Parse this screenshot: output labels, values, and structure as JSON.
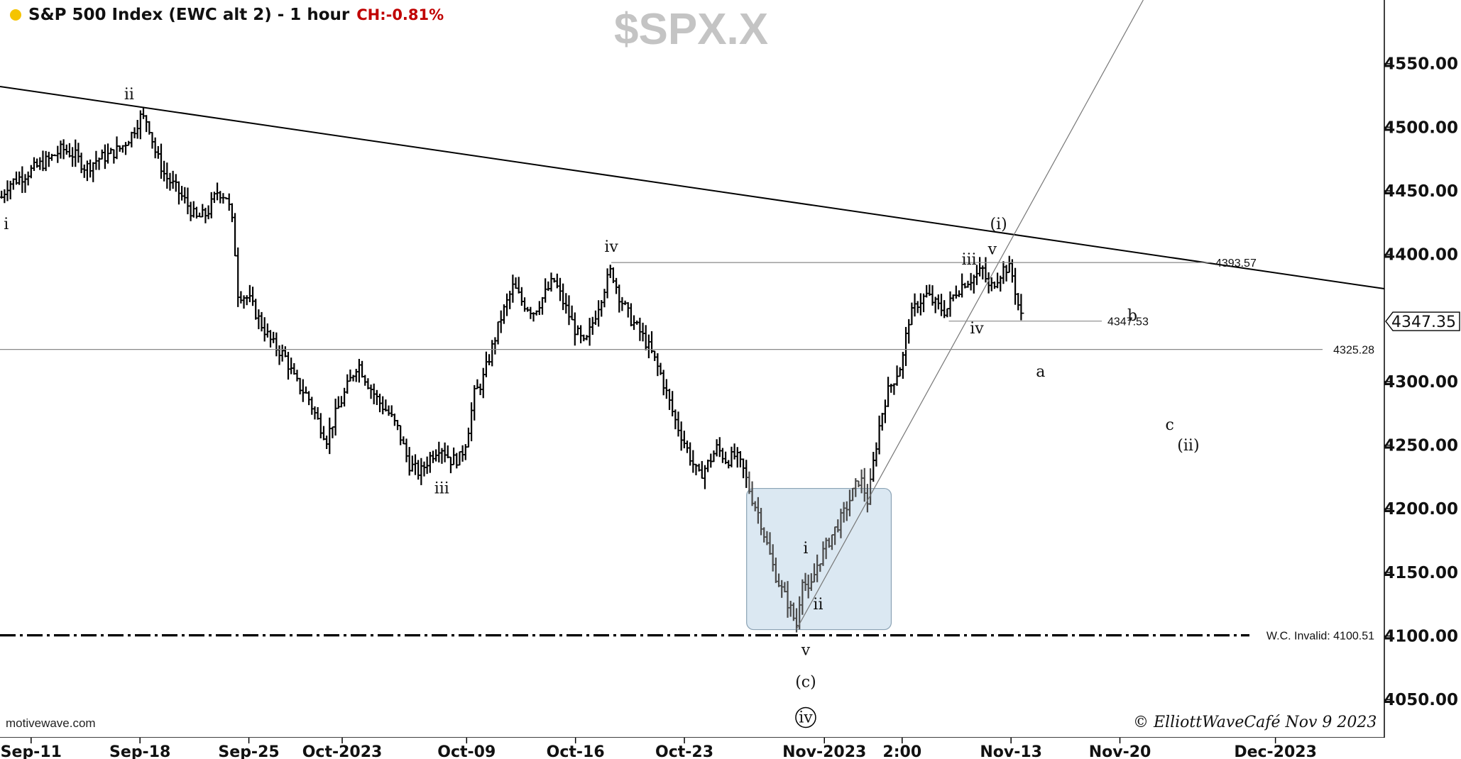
{
  "header": {
    "title": "S&P 500 Index (EWC alt 2) - 1 hour",
    "change": "CH:-0.81%",
    "watermark": "$SPX.X"
  },
  "footer": {
    "brand": "motivewave.com",
    "copyright": "© ElliottWaveCafé Nov 9 2023"
  },
  "colors": {
    "background": "#ffffff",
    "bars": "#000000",
    "highlight_box": "#dbe8f2",
    "change": "#c00000",
    "watermark": "#c4c4c4",
    "status_dot": "#f5c400"
  },
  "chart_data": {
    "type": "ohlc",
    "title": "S&P 500 Index (EWC alt 2) - 1 hour",
    "ylim": [
      4020,
      4600
    ],
    "y_ticks": [
      "4550.00",
      "4500.00",
      "4450.00",
      "4400.00",
      "4300.00",
      "4250.00",
      "4200.00",
      "4150.00",
      "4100.00",
      "4050.00"
    ],
    "x_ticks": [
      "Sep-11",
      "Sep-18",
      "Sep-25",
      "Oct-2023",
      "Oct-09",
      "Oct-16",
      "Oct-23",
      "Nov-2023",
      "2:00",
      "Nov-13",
      "Nov-20",
      "Dec-2023"
    ],
    "x_tick_days": [
      0,
      7,
      14,
      20,
      28,
      35,
      42,
      51,
      56,
      63,
      70,
      80
    ],
    "x_range_days": [
      -2,
      87
    ],
    "last_price": "4347.35",
    "levels": [
      {
        "value": 4393.57,
        "label": "4393.57"
      },
      {
        "value": 4347.53,
        "label": "4347.53"
      },
      {
        "value": 4325.28,
        "label": "4325.28"
      },
      {
        "value": 4100.51,
        "label": "W.C. Invalid: 4100.51"
      }
    ],
    "path_points": [
      [
        -1.9,
        4445
      ],
      [
        -1.5,
        4455
      ],
      [
        -0.5,
        4462
      ],
      [
        0.5,
        4470
      ],
      [
        1.2,
        4475
      ],
      [
        2.0,
        4483
      ],
      [
        2.8,
        4478
      ],
      [
        3.5,
        4468
      ],
      [
        4.3,
        4475
      ],
      [
        5.0,
        4478
      ],
      [
        5.8,
        4484
      ],
      [
        6.5,
        4495
      ],
      [
        7.0,
        4508
      ],
      [
        7.5,
        4505
      ],
      [
        8.0,
        4480
      ],
      [
        8.6,
        4462
      ],
      [
        9.3,
        4452
      ],
      [
        10.0,
        4440
      ],
      [
        10.6,
        4428
      ],
      [
        11.3,
        4432
      ],
      [
        12.0,
        4450
      ],
      [
        12.6,
        4445
      ],
      [
        13.0,
        4420
      ],
      [
        13.3,
        4370
      ],
      [
        14.0,
        4365
      ],
      [
        14.8,
        4345
      ],
      [
        15.5,
        4330
      ],
      [
        16.3,
        4320
      ],
      [
        17.0,
        4300
      ],
      [
        17.8,
        4288
      ],
      [
        18.4,
        4270
      ],
      [
        19.0,
        4255
      ],
      [
        19.6,
        4275
      ],
      [
        20.3,
        4295
      ],
      [
        21.0,
        4315
      ],
      [
        21.6,
        4300
      ],
      [
        22.3,
        4285
      ],
      [
        23.0,
        4275
      ],
      [
        23.6,
        4262
      ],
      [
        24.3,
        4235
      ],
      [
        25.0,
        4228
      ],
      [
        25.6,
        4240
      ],
      [
        26.3,
        4250
      ],
      [
        27.0,
        4238
      ],
      [
        27.6,
        4240
      ],
      [
        28.0,
        4255
      ],
      [
        28.5,
        4290
      ],
      [
        29.0,
        4300
      ],
      [
        29.6,
        4325
      ],
      [
        30.2,
        4350
      ],
      [
        31.0,
        4375
      ],
      [
        31.6,
        4362
      ],
      [
        32.3,
        4355
      ],
      [
        33.0,
        4368
      ],
      [
        33.6,
        4380
      ],
      [
        34.3,
        4360
      ],
      [
        35.0,
        4340
      ],
      [
        35.6,
        4328
      ],
      [
        36.2,
        4350
      ],
      [
        36.8,
        4372
      ],
      [
        37.3,
        4388
      ],
      [
        37.8,
        4368
      ],
      [
        38.5,
        4350
      ],
      [
        39.2,
        4338
      ],
      [
        39.8,
        4325
      ],
      [
        40.5,
        4305
      ],
      [
        41.0,
        4285
      ],
      [
        41.4,
        4270
      ],
      [
        41.9,
        4255
      ],
      [
        42.4,
        4240
      ],
      [
        42.9,
        4225
      ],
      [
        43.5,
        4235
      ],
      [
        44.1,
        4248
      ],
      [
        44.7,
        4238
      ],
      [
        45.3,
        4242
      ],
      [
        45.8,
        4230
      ],
      [
        46.3,
        4210
      ],
      [
        46.8,
        4195
      ],
      [
        47.3,
        4172
      ],
      [
        47.8,
        4150
      ],
      [
        48.3,
        4135
      ],
      [
        48.8,
        4122
      ],
      [
        49.2,
        4108
      ],
      [
        49.6,
        4148
      ],
      [
        50.0,
        4132
      ],
      [
        50.5,
        4155
      ],
      [
        51.0,
        4168
      ],
      [
        51.6,
        4182
      ],
      [
        52.2,
        4195
      ],
      [
        52.8,
        4212
      ],
      [
        53.3,
        4225
      ],
      [
        53.8,
        4205
      ],
      [
        54.2,
        4240
      ],
      [
        54.6,
        4270
      ],
      [
        55.0,
        4290
      ],
      [
        55.6,
        4305
      ],
      [
        56.0,
        4315
      ],
      [
        56.4,
        4348
      ],
      [
        57.0,
        4362
      ],
      [
        57.6,
        4368
      ],
      [
        58.2,
        4360
      ],
      [
        58.8,
        4355
      ],
      [
        59.4,
        4370
      ],
      [
        60.0,
        4378
      ],
      [
        60.6,
        4382
      ],
      [
        61.2,
        4388
      ],
      [
        61.6,
        4372
      ],
      [
        62.0,
        4380
      ],
      [
        62.6,
        4390
      ],
      [
        63.0,
        4388
      ],
      [
        63.3,
        4370
      ],
      [
        63.6,
        4352
      ],
      [
        63.8,
        4348
      ]
    ],
    "trendlines": [
      {
        "from": [
          -2,
          4532
        ],
        "to": [
          87,
          4373
        ],
        "style": "solid-thick"
      },
      {
        "from": [
          49.2,
          4105
        ],
        "to": [
          71.5,
          4600
        ],
        "style": "solid-thin"
      }
    ],
    "highlight_box": {
      "x": [
        46.0,
        55.3
      ],
      "y": [
        4105,
        4216
      ]
    },
    "wave_labels": [
      {
        "text": "i",
        "x": -1.6,
        "y": 4420
      },
      {
        "text": "ii",
        "x": 6.3,
        "y": 4522
      },
      {
        "text": "iii",
        "x": 26.4,
        "y": 4212
      },
      {
        "text": "iv",
        "x": 37.3,
        "y": 4402
      },
      {
        "text": "i",
        "x": 49.8,
        "y": 4165
      },
      {
        "text": "ii",
        "x": 50.6,
        "y": 4121
      },
      {
        "text": "v",
        "x": 49.8,
        "y": 4085
      },
      {
        "text": "(c)",
        "x": 49.8,
        "y": 4060
      },
      {
        "text": "iv",
        "x": 49.8,
        "y": 4032,
        "circled": true
      },
      {
        "text": "iii",
        "x": 60.3,
        "y": 4392
      },
      {
        "text": "v",
        "x": 61.8,
        "y": 4400
      },
      {
        "text": "(i)",
        "x": 62.2,
        "y": 4420
      },
      {
        "text": "iv",
        "x": 60.8,
        "y": 4338
      },
      {
        "text": "a",
        "x": 64.9,
        "y": 4304
      },
      {
        "text": "b",
        "x": 70.8,
        "y": 4348
      },
      {
        "text": "c",
        "x": 73.2,
        "y": 4262
      },
      {
        "text": "(ii)",
        "x": 74.4,
        "y": 4246
      }
    ]
  }
}
